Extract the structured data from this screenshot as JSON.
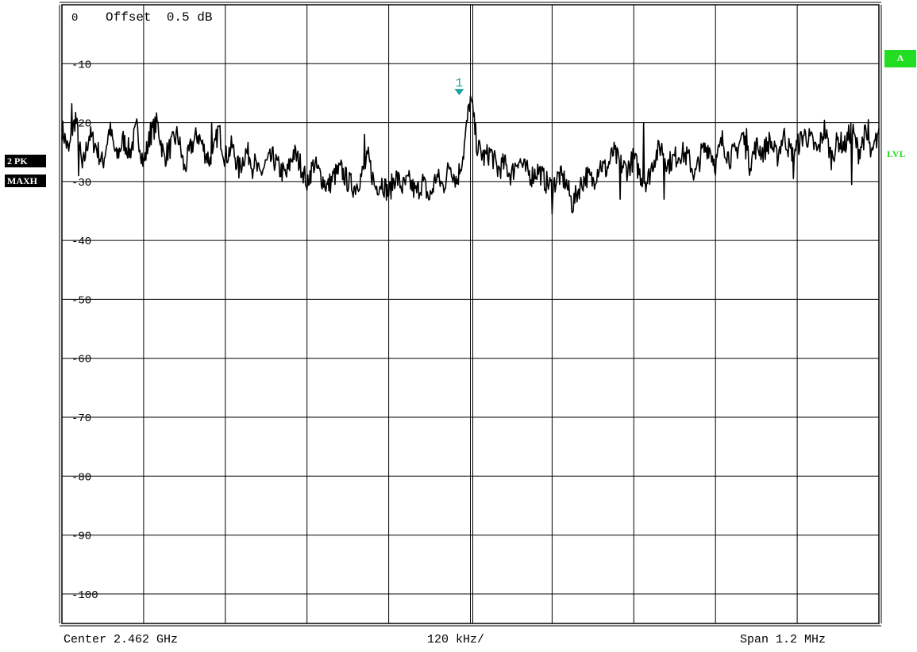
{
  "chart_data": {
    "type": "line",
    "top_label": "0",
    "offset_label": "Offset  0.5 dB",
    "ylim": [
      -105,
      0
    ],
    "ytick_labels": [
      "-10",
      "-20",
      "-30",
      "-40",
      "-50",
      "-60",
      "-70",
      "-80",
      "-90",
      "-100"
    ],
    "yticks": [
      -10,
      -20,
      -30,
      -40,
      -50,
      -60,
      -70,
      -80,
      -90,
      -100
    ],
    "xlim_mhz": [
      -0.6,
      0.6
    ],
    "grid": true,
    "footer": {
      "left": "Center 2.462 GHz",
      "center": "120 kHz/",
      "right": "Span 1.2 MHz"
    },
    "side_labels": {
      "trace": "2 PK",
      "mode": "MAXH",
      "channel": "A",
      "level": "LVL"
    },
    "marker": {
      "label": "1",
      "x_mhz": 0.0,
      "y_db": -15.5
    },
    "series": [
      {
        "x_mhz": [
          -0.6,
          -0.59,
          -0.58,
          -0.57,
          -0.56,
          -0.55,
          -0.54,
          -0.53,
          -0.52,
          -0.51,
          -0.5,
          -0.49,
          -0.48,
          -0.47,
          -0.46,
          -0.45,
          -0.44,
          -0.43,
          -0.42,
          -0.41,
          -0.4,
          -0.39,
          -0.38,
          -0.37,
          -0.36,
          -0.35,
          -0.34,
          -0.33,
          -0.32,
          -0.31,
          -0.3,
          -0.29,
          -0.28,
          -0.27,
          -0.26,
          -0.25,
          -0.24,
          -0.23,
          -0.22,
          -0.21,
          -0.2,
          -0.19,
          -0.18,
          -0.17,
          -0.16,
          -0.15,
          -0.14,
          -0.13,
          -0.12,
          -0.11,
          -0.1,
          -0.09,
          -0.08,
          -0.07,
          -0.06,
          -0.05,
          -0.04,
          -0.03,
          -0.02,
          -0.01,
          0.0,
          0.01,
          0.02,
          0.03,
          0.04,
          0.05,
          0.06,
          0.07,
          0.08,
          0.09,
          0.1,
          0.11,
          0.12,
          0.13,
          0.14,
          0.15,
          0.16,
          0.17,
          0.18,
          0.19,
          0.2,
          0.21,
          0.22,
          0.23,
          0.24,
          0.25,
          0.26,
          0.27,
          0.28,
          0.29,
          0.3,
          0.31,
          0.32,
          0.33,
          0.34,
          0.35,
          0.36,
          0.37,
          0.38,
          0.39,
          0.4,
          0.41,
          0.42,
          0.43,
          0.44,
          0.45,
          0.46,
          0.47,
          0.48,
          0.49,
          0.5,
          0.51,
          0.52,
          0.53,
          0.54,
          0.55,
          0.56,
          0.57,
          0.58,
          0.59,
          0.6
        ],
        "y_db": [
          -21,
          -25,
          -19,
          -28,
          -22,
          -24,
          -27,
          -21,
          -26,
          -23,
          -25,
          -21,
          -27,
          -22,
          -20,
          -26,
          -24,
          -22,
          -28,
          -24,
          -22,
          -25,
          -27,
          -21,
          -26,
          -24,
          -28,
          -25,
          -26,
          -29,
          -27,
          -26,
          -28,
          -29,
          -25,
          -27,
          -30,
          -27,
          -29,
          -31,
          -29,
          -28,
          -30,
          -31,
          -29,
          -26,
          -31,
          -30,
          -32,
          -29,
          -31,
          -30,
          -32,
          -30,
          -33,
          -29,
          -31,
          -27,
          -30,
          -25,
          -15.5,
          -24,
          -26,
          -25,
          -28,
          -27,
          -29,
          -26,
          -28,
          -29,
          -28,
          -30,
          -31,
          -29,
          -30,
          -34,
          -31,
          -29,
          -30,
          -27,
          -28,
          -25,
          -27,
          -28,
          -26,
          -29,
          -30,
          -26,
          -24,
          -27,
          -26,
          -25,
          -26,
          -29,
          -25,
          -24,
          -27,
          -23,
          -26,
          -25,
          -22,
          -27,
          -24,
          -25,
          -23,
          -26,
          -22,
          -25,
          -24,
          -22,
          -23,
          -25,
          -21,
          -26,
          -23,
          -24,
          -21,
          -25,
          -22,
          -26,
          -21
        ],
        "spikes": [
          {
            "x_mhz": -0.585,
            "y_db": -16.8
          },
          {
            "x_mhz": -0.575,
            "y_db": -29
          },
          {
            "x_mhz": -0.47,
            "y_db": -20
          },
          {
            "x_mhz": -0.38,
            "y_db": -20
          },
          {
            "x_mhz": -0.32,
            "y_db": -29.5
          },
          {
            "x_mhz": -0.24,
            "y_db": -31.5
          },
          {
            "x_mhz": -0.155,
            "y_db": -22
          },
          {
            "x_mhz": -0.06,
            "y_db": -33
          },
          {
            "x_mhz": 0.12,
            "y_db": -35.5
          },
          {
            "x_mhz": 0.22,
            "y_db": -33
          },
          {
            "x_mhz": 0.255,
            "y_db": -20
          },
          {
            "x_mhz": 0.285,
            "y_db": -33
          },
          {
            "x_mhz": 0.405,
            "y_db": -21
          },
          {
            "x_mhz": 0.475,
            "y_db": -29.5
          },
          {
            "x_mhz": 0.56,
            "y_db": -30.5
          },
          {
            "x_mhz": 0.585,
            "y_db": -19.5
          }
        ]
      }
    ]
  }
}
